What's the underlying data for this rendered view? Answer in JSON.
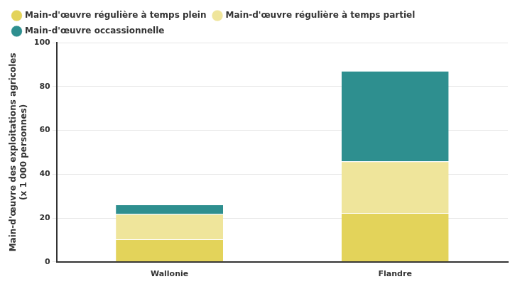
{
  "chart_data": {
    "type": "bar",
    "stacked": true,
    "y_label": "Main-d'œuvre des exploitations agricoles (x 1 000 personnes)",
    "categories": [
      "Wallonie",
      "Flandre"
    ],
    "series": [
      {
        "name": "Main-d'œuvre régulière à temps plein",
        "color": "#e3d35a",
        "values": [
          10.3,
          22.3
        ]
      },
      {
        "name": "Main-d'œuvre régulière à temps partiel",
        "color": "#efe59b",
        "values": [
          11.5,
          23.5
        ]
      },
      {
        "name": "Main-d'œuvre occassionnelle",
        "color": "#2e8f8f",
        "values": [
          4.4,
          41.3
        ]
      }
    ],
    "ylim": [
      0,
      100
    ],
    "yticks": [
      0,
      20,
      40,
      60,
      80,
      100
    ],
    "grid": true,
    "legend": "top-left"
  }
}
